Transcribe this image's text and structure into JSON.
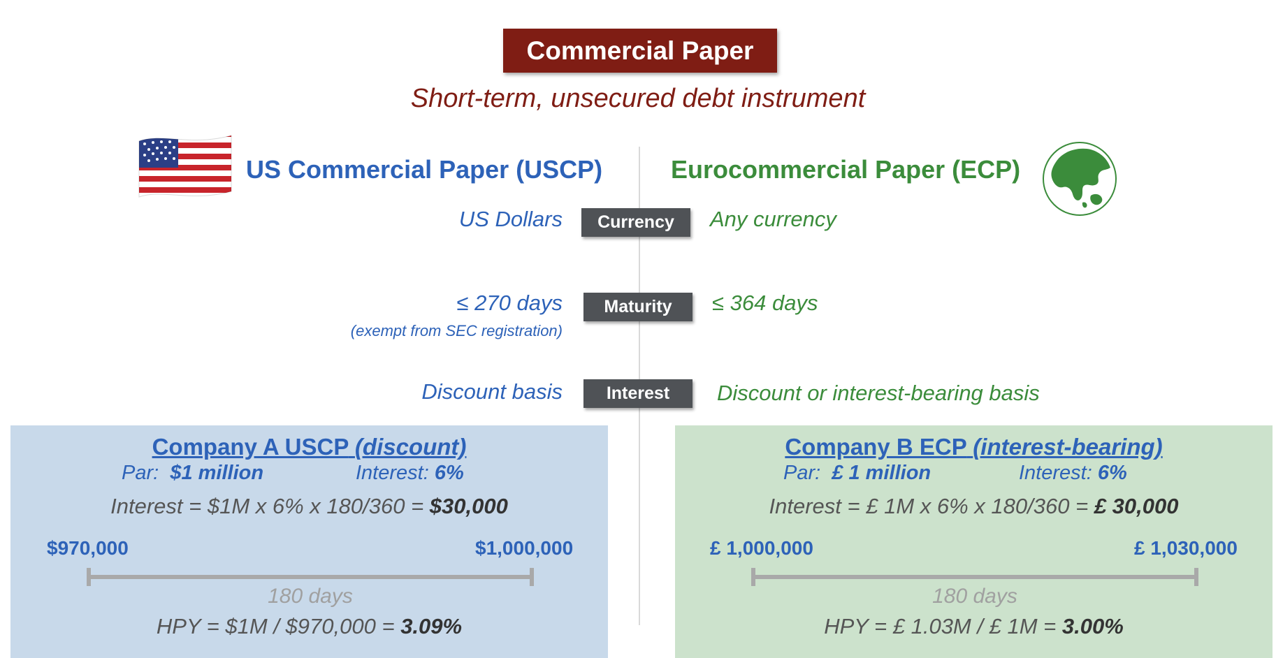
{
  "header": {
    "title": "Commercial Paper",
    "subtitle": "Short-term, unsecured debt instrument"
  },
  "left": {
    "heading": "US Commercial Paper (USCP)",
    "icon": "us-flag-icon",
    "currency": "US Dollars",
    "maturity": "≤ 270 days",
    "maturity_note": "(exempt from SEC registration)",
    "interest": "Discount basis"
  },
  "right": {
    "heading": "Eurocommercial Paper (ECP)",
    "icon": "globe-icon",
    "currency": "Any currency",
    "maturity": "≤ 364 days",
    "interest": "Discount or interest-bearing basis"
  },
  "labels": {
    "currency": "Currency",
    "maturity": "Maturity",
    "interest": "Interest"
  },
  "example_a": {
    "title": "Company A USCP",
    "title_type": "(discount)",
    "par_label": "Par:",
    "par_value": "$1 million",
    "rate_label": "Interest:",
    "rate_value": "6%",
    "calc": "Interest = $1M x 6% x 180/360 =",
    "calc_result": "$30,000",
    "start_amount": "$970,000",
    "end_amount": "$1,000,000",
    "period": "180 days",
    "hpy": "HPY = $1M / $970,000 =",
    "hpy_result": "3.09%"
  },
  "example_b": {
    "title": "Company B ECP",
    "title_type": "(interest-bearing)",
    "par_label": "Par:",
    "par_value": "£ 1 million",
    "rate_label": "Interest:",
    "rate_value": "6%",
    "calc": "Interest = £ 1M x 6% x 180/360 =",
    "calc_result": "£ 30,000",
    "start_amount": "£ 1,000,000",
    "end_amount": "£ 1,030,000",
    "period": "180 days",
    "hpy": "HPY = £ 1.03M / £ 1M =",
    "hpy_result": "3.00%"
  },
  "colors": {
    "brand_red": "#7f1d14",
    "us_blue": "#2d62b8",
    "euro_green": "#3b8c3b",
    "pill_gray": "#4f5256",
    "panel_blue": "#c8d9ea",
    "panel_green": "#cce2cc"
  }
}
